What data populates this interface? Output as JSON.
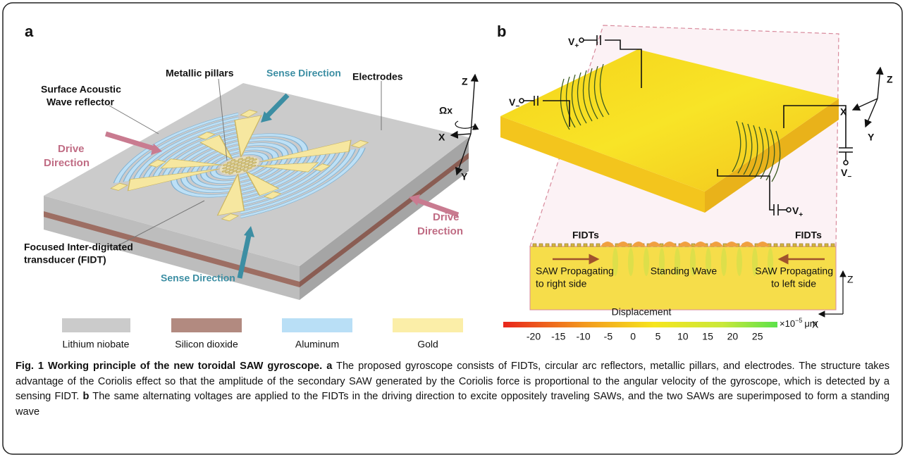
{
  "panel_a": {
    "label": "a",
    "annotations": {
      "pillars": "Metallic pillars",
      "sense_top": "Sense Direction",
      "reflector_1": "Surface Acoustic",
      "reflector_2": "Wave reflector",
      "electrodes": "Electrodes",
      "drive_left_1": "Drive",
      "drive_left_2": "Direction",
      "drive_right_1": "Drive",
      "drive_right_2": "Direction",
      "fidt_1": "Focused Inter-digitated",
      "fidt_2": "transducer (FIDT)",
      "sense_bottom": "Sense Direction"
    },
    "axes": {
      "z": "Z",
      "omega": "Ωx",
      "x": "X",
      "y": "Y"
    },
    "legend": [
      "Lithium niobate",
      "Silicon dioxide",
      "Aluminum",
      "Gold"
    ]
  },
  "panel_b": {
    "label": "b",
    "voltages": [
      {
        "base": "V",
        "sub": "+"
      },
      {
        "base": "V",
        "sub": "−"
      },
      {
        "base": "V",
        "sub": "−"
      },
      {
        "base": "V",
        "sub": "+"
      }
    ],
    "axes": {
      "z": "Z",
      "x": "X",
      "y": "Y"
    },
    "cross_section": {
      "left_label": "FIDTs",
      "right_label": "FIDTs",
      "left_text_1": "SAW Propagating",
      "left_text_2": "to right side",
      "center_text": "Standing Wave",
      "right_text_1": "SAW Propagating",
      "right_text_2": "to left side",
      "axes": {
        "z": "Z",
        "x": "X"
      }
    },
    "colorbar": {
      "title": "Displacement",
      "ticks": [
        "-20",
        "-15",
        "-10",
        "-5",
        "0",
        "5",
        "10",
        "15",
        "20",
        "25"
      ],
      "unit_base": "×10",
      "unit_exp": "−5",
      "unit": "μm"
    }
  },
  "caption": {
    "title": "Fig. 1 Working principle of the new toroidal SAW gyroscope.",
    "a_label": "a",
    "a_text": "The proposed gyroscope consists of FIDTs, circular arc reflectors, metallic pillars, and electrodes. The structure takes advantage of the Coriolis effect so that the amplitude of the secondary SAW generated by the Coriolis force is proportional to the angular velocity of the gyroscope, which is detected by a sensing FIDT.",
    "b_label": "b",
    "b_text": "The same alternating voltages are applied to the FIDTs in the driving direction to excite oppositely traveling SAWs, and the two SAWs are superimposed to form a standing wave"
  }
}
